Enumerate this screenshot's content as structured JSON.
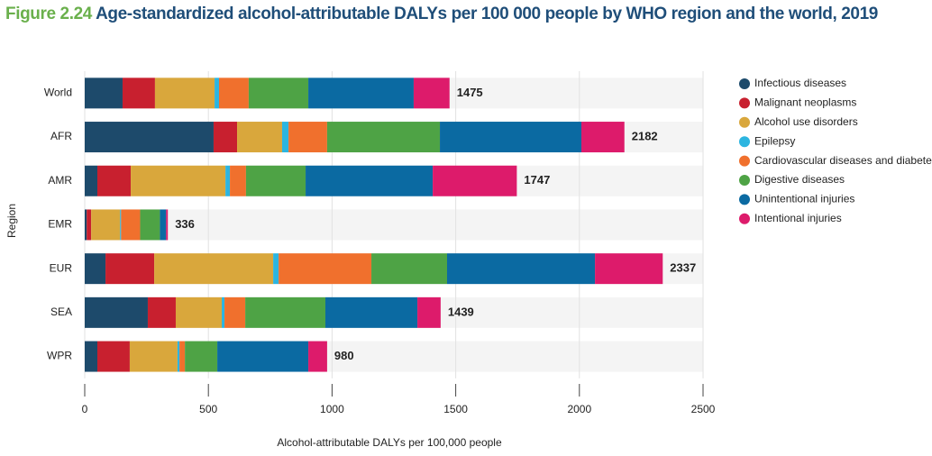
{
  "chart_data": {
    "type": "stacked-bar-horizontal",
    "figure": "Figure 2.24",
    "title": "Age-standardized alcohol-attributable DALYs per 100 000 people by WHO region and the world, 2019",
    "xlabel": "Alcohol-attributable DALYs per 100,000 people",
    "ylabel": "Region",
    "categories": [
      "World",
      "AFR",
      "AMR",
      "EMR",
      "EUR",
      "SEA",
      "WPR"
    ],
    "totals": [
      1475,
      2182,
      1747,
      336,
      2337,
      1439,
      980
    ],
    "series": [
      {
        "name": "Infectious diseases",
        "color": "#1d4a6b",
        "values": [
          153,
          521,
          51,
          8,
          84,
          255,
          51
        ]
      },
      {
        "name": "Malignant neoplasms",
        "color": "#c8202f",
        "values": [
          131,
          95,
          135,
          18,
          197,
          113,
          131
        ]
      },
      {
        "name": "Alcohol use disorders",
        "color": "#d9a73c",
        "values": [
          241,
          182,
          383,
          117,
          481,
          186,
          193
        ]
      },
      {
        "name": "Epilepsy",
        "color": "#2cb5e0",
        "values": [
          18,
          26,
          18,
          4,
          22,
          11,
          8
        ]
      },
      {
        "name": "Cardiovascular diseases and diabetes",
        "color": "#f0702d",
        "values": [
          120,
          156,
          65,
          77,
          375,
          84,
          22
        ]
      },
      {
        "name": "Digestive diseases",
        "color": "#4ea345",
        "values": [
          241,
          456,
          241,
          80,
          306,
          324,
          131
        ]
      },
      {
        "name": "Unintentional injuries",
        "color": "#0b6aa2",
        "values": [
          426,
          572,
          514,
          25,
          598,
          372,
          368
        ]
      },
      {
        "name": "Intentional injuries",
        "color": "#dd1b6b",
        "values": [
          145,
          174,
          340,
          7,
          274,
          94,
          76
        ]
      }
    ],
    "xlim": [
      0,
      2500
    ],
    "xticks": [
      0,
      500,
      1000,
      1500,
      2000,
      2500
    ],
    "grid": true
  }
}
